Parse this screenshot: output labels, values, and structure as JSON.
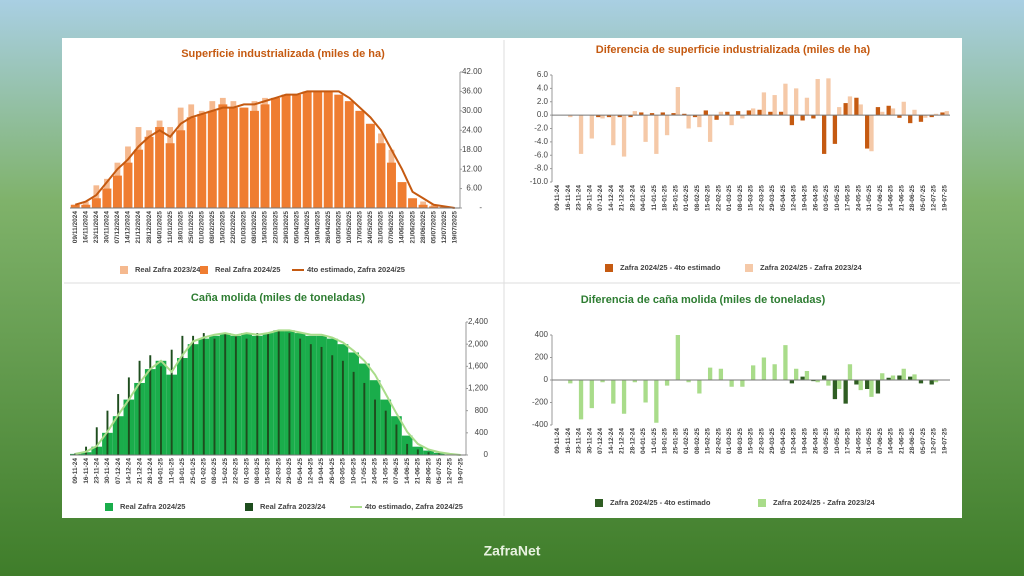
{
  "chart_data": [
    {
      "type": "combo",
      "title": "Superficie industrializada (miles de ha)",
      "yaxis_side": "right",
      "categories": [
        "09/11/2024",
        "16/11/2024",
        "23/11/2024",
        "30/11/2024",
        "07/12/2024",
        "14/12/2024",
        "21/12/2024",
        "28/12/2024",
        "04/01/2025",
        "11/01/2025",
        "18/01/2025",
        "25/01/2025",
        "01/02/2025",
        "08/02/2025",
        "15/02/2025",
        "22/02/2025",
        "01/03/2025",
        "08/03/2025",
        "15/03/2025",
        "22/03/2025",
        "29/03/2025",
        "05/04/2025",
        "12/04/2025",
        "19/04/2025",
        "26/04/2025",
        "03/05/2025",
        "10/05/2025",
        "17/05/2025",
        "24/05/2025",
        "31/05/2025",
        "07/06/2025",
        "14/06/2025",
        "21/06/2025",
        "28/06/2025",
        "05/07/2025",
        "12/07/2025",
        "19/07/2025"
      ],
      "ylim": [
        0,
        42
      ],
      "yticks": [
        {
          "value": 0,
          "label": "-"
        },
        {
          "value": 6,
          "label": "6.00"
        },
        {
          "value": 12,
          "label": "12.00"
        },
        {
          "value": 18,
          "label": "18.00"
        },
        {
          "value": 24,
          "label": "24.00"
        },
        {
          "value": 30,
          "label": "30.00"
        },
        {
          "value": 36,
          "label": "36.00"
        },
        {
          "value": 42,
          "label": "42.00"
        }
      ],
      "series": [
        {
          "name": "Real Zafra 2023/24",
          "type": "bar",
          "color": "#f5b98f",
          "values": [
            1,
            2,
            7,
            9,
            14,
            19,
            25,
            24,
            27,
            25,
            31,
            32,
            30,
            33,
            34,
            33,
            31,
            33,
            34,
            34,
            34,
            33,
            33,
            33,
            33,
            33,
            30,
            28,
            26,
            23,
            18,
            6,
            3,
            2,
            1,
            0.5,
            0
          ]
        },
        {
          "name": "Real Zafra 2024/25",
          "type": "bar",
          "color": "#ef7d31",
          "values": [
            1,
            1,
            3,
            6,
            10,
            14,
            18,
            22,
            25,
            20,
            24,
            28,
            29,
            30,
            32,
            31,
            31,
            30,
            32,
            34,
            35,
            35,
            36,
            36,
            36,
            35,
            33,
            30,
            26,
            20,
            14,
            8,
            3,
            1,
            0.5,
            0.3,
            0
          ]
        },
        {
          "name": "4to estimado, Zafra 2024/25",
          "type": "line",
          "color": "#c55a11",
          "values": [
            1,
            2,
            4,
            8,
            12,
            15,
            19,
            22,
            24,
            22,
            26,
            28,
            29,
            30,
            31,
            31,
            32,
            32,
            33,
            34,
            35,
            35,
            36,
            36,
            36,
            36,
            34,
            31,
            28,
            24,
            18,
            12,
            5,
            3,
            1,
            0.5,
            0
          ]
        }
      ]
    },
    {
      "type": "combo",
      "title": "Diferencia de superficie industrializada (miles de ha)",
      "yaxis_side": "left",
      "categories": [
        "09-11-24",
        "16-11-24",
        "23-11-24",
        "30-11-24",
        "07-12-24",
        "14-12-24",
        "21-12-24",
        "28-12-24",
        "04-01-25",
        "11-01-25",
        "18-01-25",
        "25-01-25",
        "01-02-25",
        "08-02-25",
        "15-02-25",
        "22-02-25",
        "01-03-25",
        "08-03-25",
        "15-03-25",
        "22-03-25",
        "29-03-25",
        "05-04-25",
        "12-04-25",
        "19-04-25",
        "26-04-25",
        "03-05-25",
        "10-05-25",
        "17-05-25",
        "24-05-25",
        "31-05-25",
        "07-06-25",
        "14-06-25",
        "21-06-25",
        "28-06-25",
        "05-07-25",
        "12-07-25",
        "19-07-25"
      ],
      "ylim": [
        -10,
        6
      ],
      "yticks": [
        {
          "value": -10,
          "label": "-10.0"
        },
        {
          "value": -8,
          "label": "-8.0"
        },
        {
          "value": -6,
          "label": "-6.0"
        },
        {
          "value": -4,
          "label": "-4.0"
        },
        {
          "value": -2,
          "label": "-2.0"
        },
        {
          "value": 0,
          "label": "0.0"
        },
        {
          "value": 2,
          "label": "2.0"
        },
        {
          "value": 4,
          "label": "4.0"
        },
        {
          "value": 6,
          "label": "6.0"
        }
      ],
      "series": [
        {
          "name": "Zafra 2024/25 - 4to estimado",
          "type": "bar",
          "color": "#c55a11",
          "values": [
            0,
            0,
            0,
            0,
            -0.3,
            -0.3,
            -0.3,
            -0.3,
            0.4,
            0.3,
            0.4,
            0.3,
            0.2,
            -0.3,
            0.7,
            -0.7,
            0.5,
            0.6,
            0.7,
            0.8,
            0.5,
            0.5,
            -1.5,
            -0.8,
            -0.5,
            -5.8,
            -4.3,
            1.8,
            2.6,
            -5,
            1.2,
            1.4,
            -0.4,
            -1.2,
            -1,
            -0.3,
            0.4
          ]
        },
        {
          "name": "Zafra 2024/25 - Zafra 2023/24",
          "type": "bar",
          "color": "#f5c9a8",
          "values": [
            0,
            -0.3,
            -5.8,
            -3.5,
            -0.5,
            -4.5,
            -6.2,
            0.6,
            -4,
            -5.8,
            -3,
            4.2,
            -2,
            -1.8,
            -4,
            0.5,
            -1.5,
            -0.5,
            1,
            3.4,
            3,
            4.7,
            4,
            2.6,
            5.4,
            5.5,
            1.2,
            2.8,
            1.6,
            -5.4,
            0.5,
            1,
            2,
            0.8,
            -0.4,
            0.2,
            0.6
          ]
        }
      ]
    },
    {
      "type": "combo",
      "title": "Caña molida (miles de toneladas)",
      "yaxis_side": "right",
      "categories": [
        "09-11-24",
        "16-11-24",
        "23-11-24",
        "30-11-24",
        "07-12-24",
        "14-12-24",
        "21-12-24",
        "28-12-24",
        "04-01-25",
        "11-01-25",
        "18-01-25",
        "25-01-25",
        "01-02-25",
        "08-02-25",
        "15-02-25",
        "22-02-25",
        "01-03-25",
        "08-03-25",
        "15-03-25",
        "22-03-25",
        "29-03-25",
        "05-04-25",
        "12-04-25",
        "19-04-25",
        "26-04-25",
        "03-05-25",
        "10-05-25",
        "17-05-25",
        "24-05-25",
        "31-05-25",
        "07-06-25",
        "14-06-25",
        "21-06-25",
        "28-06-25",
        "05-07-25",
        "12-07-25",
        "19-07-25"
      ],
      "ylim": [
        0,
        2400
      ],
      "yticks": [
        0,
        400,
        800,
        {
          "value": 1200,
          "label": "1,200"
        },
        {
          "value": 1600,
          "label": "1,600"
        },
        {
          "value": 2000,
          "label": "2,000"
        },
        {
          "value": 2400,
          "label": "2,400"
        }
      ],
      "series": [
        {
          "name": "Real Zafra 2024/25",
          "type": "bar",
          "color": "#1aad4b",
          "values": [
            20,
            50,
            150,
            400,
            700,
            1000,
            1300,
            1550,
            1700,
            1450,
            1750,
            2000,
            2100,
            2150,
            2200,
            2150,
            2200,
            2150,
            2200,
            2250,
            2250,
            2200,
            2150,
            2150,
            2100,
            2000,
            1850,
            1650,
            1350,
            1000,
            700,
            350,
            150,
            80,
            40,
            10,
            0
          ]
        },
        {
          "name": "Real Zafra 2023/24",
          "type": "bar",
          "color": "#1e4d1e",
          "values": [
            30,
            150,
            500,
            800,
            1100,
            1400,
            1700,
            1800,
            1600,
            1900,
            2150,
            2150,
            2200,
            2100,
            2200,
            2150,
            2100,
            2200,
            2200,
            2250,
            2200,
            2100,
            2000,
            1950,
            1800,
            1700,
            1500,
            1300,
            1000,
            800,
            550,
            200,
            100,
            50,
            30,
            20,
            0
          ]
        },
        {
          "name": "4to estimado, Zafra 2024/25",
          "type": "line",
          "color": "#a9dc8a",
          "values": [
            20,
            60,
            160,
            420,
            720,
            1000,
            1300,
            1550,
            1700,
            1500,
            1800,
            2050,
            2120,
            2170,
            2200,
            2160,
            2200,
            2170,
            2200,
            2250,
            2250,
            2210,
            2170,
            2170,
            2120,
            2030,
            1880,
            1700,
            1450,
            1100,
            750,
            420,
            200,
            100,
            50,
            20,
            0
          ]
        }
      ]
    },
    {
      "type": "combo",
      "title": "Diferencia de caña molida (miles de toneladas)",
      "yaxis_side": "left",
      "categories": [
        "09-11-24",
        "16-11-24",
        "23-11-24",
        "30-11-24",
        "07-12-24",
        "14-12-24",
        "21-12-24",
        "28-12-24",
        "04-01-25",
        "11-01-25",
        "18-01-25",
        "25-01-25",
        "01-02-25",
        "08-02-25",
        "15-02-25",
        "22-02-25",
        "01-03-25",
        "08-03-25",
        "15-03-25",
        "22-03-25",
        "29-03-25",
        "05-04-25",
        "12-04-25",
        "19-04-25",
        "26-04-25",
        "03-05-25",
        "10-05-25",
        "17-05-25",
        "24-05-25",
        "31-05-25",
        "07-06-25",
        "14-06-25",
        "21-06-25",
        "28-06-25",
        "05-07-25",
        "12-07-25",
        "19-07-25"
      ],
      "ylim": [
        -400,
        400
      ],
      "yticks": [
        -400,
        -200,
        0,
        200,
        400
      ],
      "series": [
        {
          "name": "Zafra 2024/25 - 4to estimado",
          "type": "bar",
          "color": "#2f5d23",
          "values": [
            0,
            0,
            0,
            0,
            0,
            0,
            0,
            0,
            0,
            0,
            0,
            0,
            0,
            0,
            0,
            0,
            0,
            0,
            0,
            0,
            0,
            0,
            -30,
            30,
            -10,
            40,
            -170,
            -210,
            -40,
            -80,
            -120,
            20,
            40,
            30,
            -30,
            -40,
            0
          ]
        },
        {
          "name": "Zafra 2024/25 - Zafra 2023/24",
          "type": "bar",
          "color": "#a9dc8a",
          "values": [
            0,
            -30,
            -350,
            -250,
            -20,
            -210,
            -300,
            -20,
            -200,
            -380,
            -50,
            400,
            -20,
            -120,
            110,
            100,
            -60,
            -60,
            130,
            200,
            140,
            310,
            100,
            80,
            -20,
            -50,
            -80,
            140,
            -90,
            -150,
            60,
            40,
            100,
            50,
            0,
            -20,
            0
          ]
        }
      ]
    }
  ],
  "logo": "ZafraNet"
}
